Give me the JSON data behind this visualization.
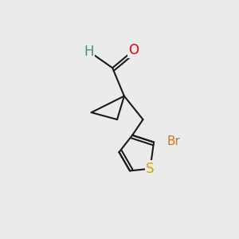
{
  "background_color": "#ebebeb",
  "bond_color": "#1a1a1a",
  "bond_width": 1.5,
  "atom_colors": {
    "O": "#ee0000",
    "S": "#ccaa00",
    "Br": "#cc7722",
    "H": "#4a8888",
    "C": "#1a1a1a"
  },
  "font_size_atom": 11,
  "font_size_br": 10
}
